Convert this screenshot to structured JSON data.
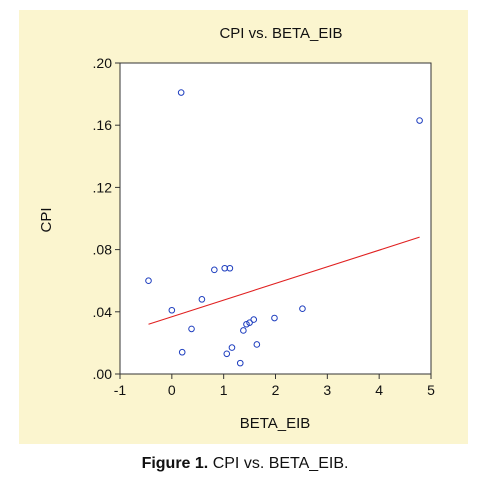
{
  "chart_data": {
    "type": "scatter",
    "title": "CPI vs. BETA_EIB",
    "xlabel": "BETA_EIB",
    "ylabel": "CPI",
    "xlim": [
      -1,
      5
    ],
    "ylim": [
      0.0,
      0.2
    ],
    "x_ticks": [
      -1,
      0,
      1,
      2,
      3,
      4,
      5
    ],
    "x_tick_labels": [
      "-1",
      "0",
      "1",
      "2",
      "3",
      "4",
      "5"
    ],
    "y_ticks": [
      0.0,
      0.04,
      0.08,
      0.12,
      0.16,
      0.2
    ],
    "y_tick_labels": [
      ".00",
      ".04",
      ".08",
      ".12",
      ".16",
      ".20"
    ],
    "grid": false,
    "series": [
      {
        "type": "scatter",
        "color": "#1f3fbf",
        "x": [
          0.18,
          4.78,
          -0.45,
          0.82,
          1.02,
          1.12,
          0.58,
          0.0,
          2.52,
          0.38,
          1.98,
          1.58,
          1.5,
          1.44,
          1.38,
          1.64,
          1.16,
          0.2,
          1.06,
          1.32
        ],
        "y": [
          0.181,
          0.163,
          0.06,
          0.067,
          0.068,
          0.068,
          0.048,
          0.041,
          0.042,
          0.029,
          0.036,
          0.035,
          0.033,
          0.032,
          0.028,
          0.019,
          0.017,
          0.014,
          0.013,
          0.007
        ]
      },
      {
        "type": "line",
        "color": "#e02020",
        "x": [
          -0.45,
          4.78
        ],
        "y": [
          0.032,
          0.088
        ]
      }
    ]
  },
  "caption": {
    "label": "Figure 1.",
    "text": " CPI vs. BETA_EIB."
  }
}
